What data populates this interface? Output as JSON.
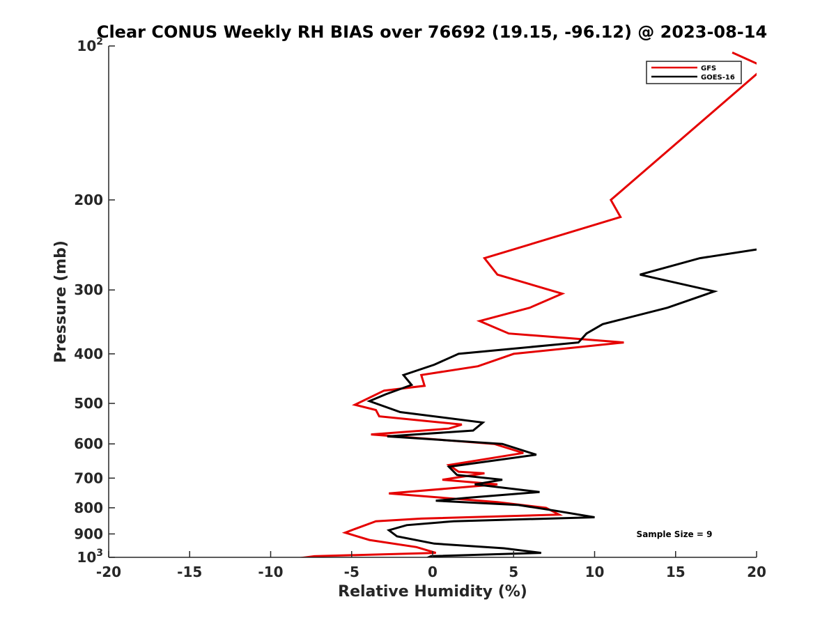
{
  "chart_data": {
    "type": "line",
    "title": "Clear CONUS Weekly RH BIAS over 76692 (19.15, -96.12) @ 2023-08-14",
    "xlabel": "Relative Humidity (%)",
    "ylabel": "Pressure (mb)",
    "xlim": [
      -20,
      20
    ],
    "ylim": [
      100,
      1000
    ],
    "yscale": "log",
    "y_reversed": true,
    "x_ticks": [
      -20,
      -15,
      -10,
      -5,
      0,
      5,
      10,
      15,
      20
    ],
    "x_tick_labels": [
      "-20",
      "-15",
      "-10",
      "-5",
      "0",
      "5",
      "10",
      "15",
      "20"
    ],
    "y_ticks": [
      {
        "value": 100,
        "base": "10",
        "exp": "2"
      },
      {
        "value": 200,
        "label": "200"
      },
      {
        "value": 300,
        "label": "300"
      },
      {
        "value": 400,
        "label": "400"
      },
      {
        "value": 500,
        "label": "500"
      },
      {
        "value": 600,
        "label": "600"
      },
      {
        "value": 700,
        "label": "700"
      },
      {
        "value": 800,
        "label": "800"
      },
      {
        "value": 900,
        "label": "900"
      },
      {
        "value": 1000,
        "base": "10",
        "exp": "3"
      }
    ],
    "legend_position": "top-right",
    "annotation": "Sample Size = 9",
    "series": [
      {
        "name": "GFS",
        "color": "#e50000",
        "x": [
          18.5,
          20.5,
          11.0,
          11.6,
          3.2,
          4.0,
          8.0,
          6.0,
          2.9,
          4.7,
          11.8,
          5.0,
          2.8,
          -0.7,
          -0.5,
          -3.0,
          -4.8,
          -3.5,
          -3.3,
          1.8,
          1.0,
          -3.8,
          3.8,
          5.6,
          1.0,
          1.6,
          3.2,
          0.6,
          4.0,
          -2.7,
          4.0,
          7.0,
          7.8,
          -0.7,
          -3.5,
          -4.8,
          -5.4,
          -3.9,
          -1.0,
          0.2,
          -7.3,
          -8.9
        ],
        "y": [
          103,
          110,
          200,
          216,
          260,
          280,
          305,
          325,
          345,
          365,
          380,
          400,
          423,
          440,
          462,
          472,
          503,
          515,
          530,
          550,
          560,
          575,
          600,
          625,
          660,
          680,
          685,
          705,
          720,
          750,
          780,
          800,
          825,
          840,
          850,
          880,
          895,
          925,
          955,
          980,
          995,
          1010
        ]
      },
      {
        "name": "GOES-16",
        "color": "#000000",
        "x": [
          20.0,
          16.5,
          12.8,
          17.4,
          14.5,
          10.5,
          9.5,
          9.0,
          1.6,
          0.1,
          -1.8,
          -1.3,
          -2.9,
          -3.9,
          -2.0,
          3.1,
          2.5,
          -2.8,
          4.3,
          6.4,
          1.0,
          1.5,
          4.3,
          2.6,
          6.6,
          2.1,
          0.2,
          5.3,
          7.5,
          10.0,
          1.3,
          -1.6,
          -2.7,
          -2.2,
          0.1,
          4.4,
          6.7,
          -0.1,
          -0.9
        ],
        "y": [
          250,
          260,
          280,
          302,
          325,
          350,
          365,
          380,
          400,
          420,
          440,
          460,
          480,
          495,
          520,
          545,
          565,
          580,
          600,
          630,
          665,
          690,
          705,
          720,
          745,
          765,
          775,
          790,
          810,
          835,
          850,
          865,
          885,
          910,
          940,
          960,
          980,
          995,
          1020
        ]
      }
    ]
  }
}
